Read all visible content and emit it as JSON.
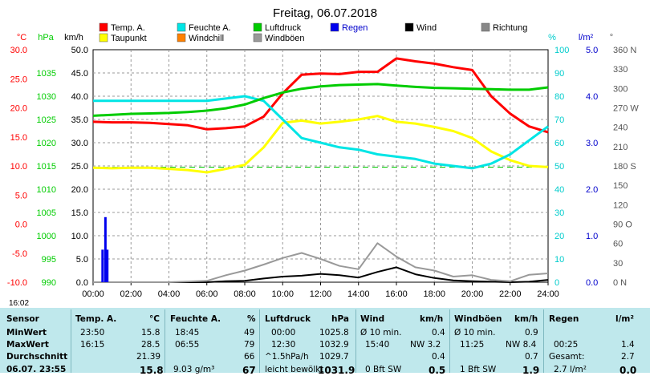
{
  "chart_data": {
    "type": "line",
    "title": "Freitag, 06.07.2018",
    "x_ticks": [
      "00:00",
      "02:00",
      "04:00",
      "06:00",
      "08:00",
      "10:00",
      "12:00",
      "14:00",
      "16:00",
      "18:00",
      "20:00",
      "22:00",
      "24:00"
    ],
    "axes": [
      {
        "unit": "°C",
        "color": "#ff0000",
        "range": [
          -10,
          30
        ],
        "ticks": [
          "30.0",
          "25.0",
          "20.0",
          "15.0",
          "10.0",
          "5.0",
          "0.0",
          "-5.0",
          "-10.0"
        ]
      },
      {
        "unit": "hPa",
        "color": "#00cc00",
        "range": [
          990,
          1040
        ],
        "ticks": [
          "1035",
          "1030",
          "1025",
          "1020",
          "1015",
          "1010",
          "1005",
          "1000",
          "995",
          "990"
        ]
      },
      {
        "unit": "km/h",
        "color": "#000000",
        "range": [
          0,
          50
        ],
        "ticks": [
          "50.0",
          "45.0",
          "40.0",
          "35.0",
          "30.0",
          "25.0",
          "20.0",
          "15.0",
          "10.0",
          "5.0",
          "0.0"
        ]
      },
      {
        "unit": "%",
        "color": "#00cccc",
        "range": [
          0,
          100
        ],
        "ticks": [
          "100",
          "90",
          "80",
          "70",
          "60",
          "50",
          "40",
          "30",
          "20",
          "10",
          "0"
        ]
      },
      {
        "unit": "l/m²",
        "color": "#0000cc",
        "range": [
          0,
          5
        ],
        "ticks": [
          "5.0",
          "4.0",
          "3.0",
          "2.0",
          "1.0",
          "0.0"
        ]
      },
      {
        "unit": "°",
        "color": "#555555",
        "range": [
          0,
          360
        ],
        "ticks": [
          "360 N",
          "330",
          "300",
          "270 W",
          "240",
          "210",
          "180 S",
          "150",
          "120",
          "90 O",
          "60",
          "30",
          "0 N"
        ]
      }
    ],
    "legend": [
      {
        "name": "Temp. A.",
        "color": "#ff0000"
      },
      {
        "name": "Feuchte A.",
        "color": "#00e5e5"
      },
      {
        "name": "Luftdruck",
        "color": "#00cc00"
      },
      {
        "name": "Regen",
        "color": "#0000ee"
      },
      {
        "name": "Wind",
        "color": "#000000"
      },
      {
        "name": "Richtung",
        "color": "#888888"
      },
      {
        "name": "Taupunkt",
        "color": "#ffff00"
      },
      {
        "name": "Windchill",
        "color": "#ff8000"
      },
      {
        "name": "Windböen",
        "color": "#999999"
      }
    ],
    "series": [
      {
        "name": "Temp. A.",
        "axis": "°C",
        "color": "#ff0000",
        "x": [
          0,
          1,
          2,
          3,
          4,
          5,
          6,
          7,
          8,
          9,
          10,
          11,
          12,
          13,
          14,
          15,
          16,
          17,
          18,
          19,
          20,
          21,
          22,
          23,
          24
        ],
        "y": [
          17.6,
          17.5,
          17.5,
          17.4,
          17.2,
          17.0,
          16.3,
          16.5,
          16.8,
          18.5,
          22.5,
          25.7,
          25.9,
          25.8,
          26.2,
          26.2,
          28.5,
          28.0,
          27.6,
          27.0,
          26.5,
          22.0,
          19.0,
          16.8,
          15.8
        ]
      },
      {
        "name": "Taupunkt",
        "axis": "°C",
        "color": "#ffff00",
        "x": [
          0,
          1,
          2,
          3,
          4,
          5,
          6,
          7,
          8,
          9,
          10,
          11,
          12,
          13,
          14,
          15,
          16,
          17,
          18,
          19,
          20,
          21,
          22,
          23,
          24
        ],
        "y": [
          9.7,
          9.6,
          9.7,
          9.7,
          9.5,
          9.3,
          8.9,
          9.5,
          10.2,
          13.2,
          17.4,
          17.8,
          17.3,
          17.6,
          18.0,
          18.6,
          17.6,
          17.3,
          16.7,
          16.0,
          14.8,
          12.5,
          11.0,
          10.0,
          9.8
        ]
      },
      {
        "name": "Feuchte A.",
        "axis": "%",
        "color": "#00e5e5",
        "x": [
          0,
          1,
          2,
          3,
          4,
          5,
          6,
          7,
          8,
          9,
          10,
          11,
          12,
          13,
          14,
          15,
          16,
          17,
          18,
          19,
          20,
          21,
          22,
          23,
          24
        ],
        "y": [
          78,
          78,
          78,
          78,
          78,
          78,
          78,
          79,
          80,
          78,
          70,
          62,
          60,
          58,
          57,
          55,
          54,
          53,
          51,
          50,
          49,
          51,
          55,
          61,
          67
        ]
      },
      {
        "name": "Luftdruck",
        "axis": "hPa",
        "color": "#00cc00",
        "x": [
          0,
          1,
          2,
          3,
          4,
          5,
          6,
          7,
          8,
          9,
          10,
          11,
          12,
          13,
          14,
          15,
          16,
          17,
          18,
          19,
          20,
          21,
          22,
          23,
          24
        ],
        "y": [
          1025.8,
          1026.0,
          1026.2,
          1026.3,
          1026.4,
          1026.6,
          1026.9,
          1027.4,
          1028.2,
          1029.6,
          1030.8,
          1031.6,
          1032.1,
          1032.4,
          1032.5,
          1032.6,
          1032.3,
          1032.0,
          1031.8,
          1031.7,
          1031.6,
          1031.5,
          1031.4,
          1031.4,
          1031.9
        ]
      },
      {
        "name": "Wind",
        "axis": "km/h",
        "color": "#000000",
        "x": [
          0,
          2,
          4,
          6,
          7,
          8,
          9,
          10,
          11,
          12,
          13,
          14,
          15,
          16,
          17,
          18,
          19,
          20,
          21,
          22,
          23,
          24
        ],
        "y": [
          0,
          0,
          0,
          0,
          0.2,
          0.3,
          0.8,
          1.2,
          1.4,
          1.8,
          1.5,
          1.0,
          2.2,
          3.2,
          1.7,
          0.9,
          0.4,
          0.2,
          0.1,
          0,
          0.1,
          0.5
        ]
      },
      {
        "name": "Windböen",
        "axis": "km/h",
        "color": "#999999",
        "x": [
          0,
          2,
          4,
          6,
          7,
          8,
          9,
          10,
          11,
          12,
          13,
          14,
          15,
          16,
          17,
          18,
          19,
          20,
          21,
          22,
          23,
          24
        ],
        "y": [
          0,
          0,
          0,
          0.3,
          1.5,
          2.5,
          3.8,
          5.2,
          6.3,
          5.0,
          3.5,
          2.8,
          8.4,
          5.5,
          3.2,
          2.5,
          1.2,
          1.5,
          0.5,
          0.2,
          1.6,
          1.9
        ]
      },
      {
        "name": "Regen",
        "axis": "l/m²",
        "color": "#0000ee",
        "x": [
          0.5,
          0.65,
          0.75
        ],
        "y": [
          0.7,
          1.4,
          0.7
        ]
      }
    ],
    "threshold_line": {
      "axis": "°C",
      "value": 9.8,
      "color": "#00cc00"
    }
  },
  "time_label": "16:02",
  "stats": {
    "headers": [
      "Sensor",
      "Temp. A.",
      "°C",
      "Feuchte A.",
      "%",
      "Luftdruck",
      "hPa",
      "Wind",
      "km/h",
      "Windböen",
      "km/h",
      "Regen",
      "l/m²"
    ],
    "min": {
      "label": "MinWert",
      "t_time": "23:50",
      "t_val": "15.8",
      "h_time": "18:45",
      "h_val": "49",
      "p_time": "00:00",
      "p_val": "1025.8",
      "w_txt": "Ø 10 min.",
      "w_val": "0.4",
      "g_txt": "Ø 10 min.",
      "g_val": "0.9"
    },
    "max": {
      "label": "MaxWert",
      "t_time": "16:15",
      "t_val": "28.5",
      "h_time": "06:55",
      "h_val": "79",
      "p_time": "12:30",
      "p_val": "1032.9",
      "w_time": "15:40",
      "w_txt": "NW 3.2",
      "g_time": "11:25",
      "g_txt": "NW 8.4",
      "r_time": "00:25",
      "r_val": "1.4"
    },
    "avg": {
      "label": "Durchschnitt",
      "t_val": "21.39",
      "h_val": "66",
      "p_txt": "^1.5hPa/h",
      "p_val": "1029.7",
      "w_val": "0.4",
      "g_val": "0.7",
      "r_txt": "Gesamt:",
      "r_val": "2.7"
    },
    "cur": {
      "label": "06.07. 23:55",
      "t_val": "15.8",
      "h_txt": "9.03 g/m³",
      "h_val": "67",
      "p_txt": "leicht bewölkt",
      "p_val": "1031.9",
      "w_txt": "0 Bft SW",
      "w_val": "0.5",
      "g_txt": "1 Bft SW",
      "g_val": "1.9",
      "r_txt": "2.7 l/m²",
      "r_val": "0.0"
    }
  }
}
